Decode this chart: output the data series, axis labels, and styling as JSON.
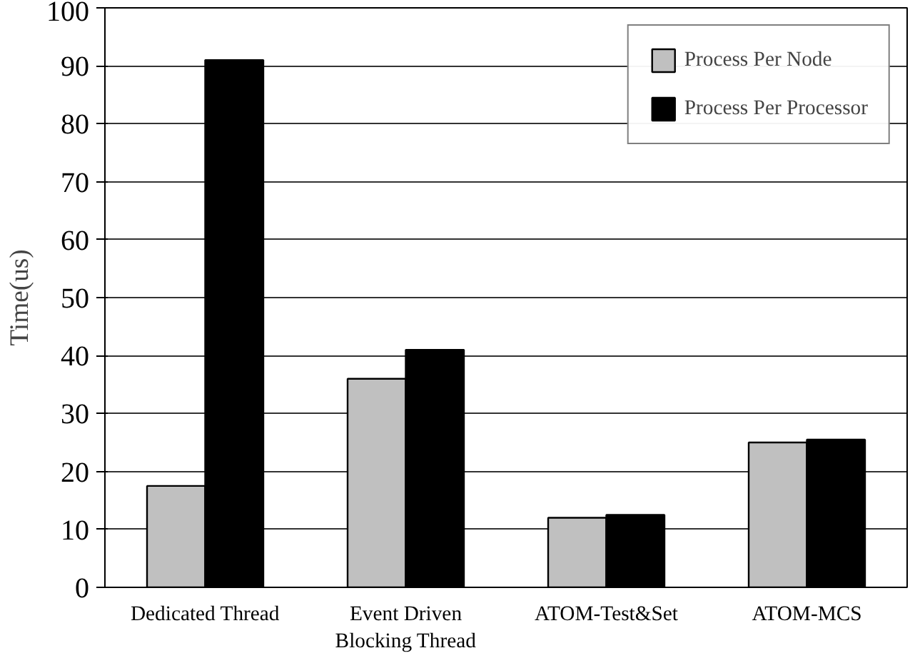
{
  "chart_data": {
    "type": "bar",
    "ylabel": "Time(us)",
    "categories": [
      "Dedicated Thread",
      "Event Driven\nBlocking Thread",
      "ATOM-Test&Set",
      "ATOM-MCS"
    ],
    "series": [
      {
        "name": "Process Per Node",
        "color": "#c0c0c0",
        "values": [
          17.5,
          36,
          12,
          25
        ]
      },
      {
        "name": "Process Per Processor",
        "color": "#000000",
        "values": [
          91,
          41,
          12.5,
          25.5
        ]
      }
    ],
    "ylim": [
      0,
      100
    ],
    "yticks": [
      0,
      10,
      20,
      30,
      40,
      50,
      60,
      70,
      80,
      90,
      100
    ],
    "grid": "y",
    "legend": "top right"
  }
}
